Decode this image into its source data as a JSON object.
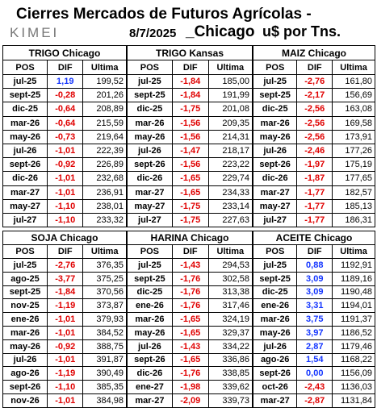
{
  "header": {
    "title": "Cierres Mercados de Futuros Agrícolas -",
    "logo": "KIMEI",
    "date": "8/7/2025",
    "market": "_Chicago",
    "unit": "u$ por Tns."
  },
  "tables": [
    {
      "name": "TRIGO  Chicago",
      "columns": [
        "POS",
        "DIF",
        "Ultima"
      ],
      "rows": [
        [
          "jul-25",
          "1,19",
          "199,52"
        ],
        [
          "sept-25",
          "-0,28",
          "201,26"
        ],
        [
          "dic-25",
          "-0,64",
          "208,89"
        ],
        [
          "mar-26",
          "-0,64",
          "215,59"
        ],
        [
          "may-26",
          "-0,73",
          "219,64"
        ],
        [
          "jul-26",
          "-1,01",
          "222,39"
        ],
        [
          "sept-26",
          "-0,92",
          "226,89"
        ],
        [
          "dic-26",
          "-1,01",
          "232,68"
        ],
        [
          "mar-27",
          "-1,01",
          "236,91"
        ],
        [
          "may-27",
          "-1,10",
          "238,01"
        ],
        [
          "jul-27",
          "-1,10",
          "233,32"
        ]
      ]
    },
    {
      "name": "TRIGO  Kansas",
      "columns": [
        "POS",
        "DIF",
        "Ultima"
      ],
      "rows": [
        [
          "jul-25",
          "-1,84",
          "185,00"
        ],
        [
          "sept-25",
          "-1,84",
          "191,99"
        ],
        [
          "dic-25",
          "-1,75",
          "201,08"
        ],
        [
          "mar-26",
          "-1,56",
          "209,35"
        ],
        [
          "may-26",
          "-1,56",
          "214,31"
        ],
        [
          "jul-26",
          "-1,47",
          "218,17"
        ],
        [
          "sept-26",
          "-1,56",
          "223,22"
        ],
        [
          "dic-26",
          "-1,65",
          "229,74"
        ],
        [
          "mar-27",
          "-1,65",
          "234,33"
        ],
        [
          "may-27",
          "-1,75",
          "233,14"
        ],
        [
          "jul-27",
          "-1,75",
          "227,63"
        ]
      ]
    },
    {
      "name": "MAIZ Chicago",
      "columns": [
        "POS",
        "DIF",
        "Ultima"
      ],
      "rows": [
        [
          "jul-25",
          "-2,76",
          "161,80"
        ],
        [
          "sept-25",
          "-2,17",
          "156,69"
        ],
        [
          "dic-25",
          "-2,56",
          "163,08"
        ],
        [
          "mar-26",
          "-2,56",
          "169,58"
        ],
        [
          "may-26",
          "-2,56",
          "173,91"
        ],
        [
          "jul-26",
          "-2,46",
          "177,26"
        ],
        [
          "sept-26",
          "-1,97",
          "175,19"
        ],
        [
          "dic-26",
          "-1,87",
          "177,65"
        ],
        [
          "mar-27",
          "-1,77",
          "182,57"
        ],
        [
          "may-27",
          "-1,77",
          "185,13"
        ],
        [
          "jul-27",
          "-1,77",
          "186,31"
        ]
      ]
    },
    {
      "name": "SOJA Chicago",
      "columns": [
        "POS",
        "DIF",
        "Ultima"
      ],
      "rows": [
        [
          "jul-25",
          "-2,76",
          "376,35"
        ],
        [
          "ago-25",
          "-3,77",
          "375,25"
        ],
        [
          "sept-25",
          "-1,84",
          "370,56"
        ],
        [
          "nov-25",
          "-1,19",
          "373,87"
        ],
        [
          "ene-26",
          "-1,01",
          "379,93"
        ],
        [
          "mar-26",
          "-1,01",
          "384,52"
        ],
        [
          "may-26",
          "-0,92",
          "388,75"
        ],
        [
          "jul-26",
          "-1,01",
          "391,87"
        ],
        [
          "ago-26",
          "-1,19",
          "390,49"
        ],
        [
          "sept-26",
          "-1,10",
          "385,35"
        ],
        [
          "nov-26",
          "-1,01",
          "384,98"
        ]
      ]
    },
    {
      "name": "HARINA Chicago",
      "columns": [
        "POS",
        "DIF",
        "Ultima"
      ],
      "rows": [
        [
          "jul-25",
          "-1,43",
          "294,53"
        ],
        [
          "sept-25",
          "-1,76",
          "302,58"
        ],
        [
          "dic-25",
          "-1,76",
          "313,38"
        ],
        [
          "ene-26",
          "-1,76",
          "317,46"
        ],
        [
          "mar-26",
          "-1,65",
          "324,19"
        ],
        [
          "may-26",
          "-1,65",
          "329,37"
        ],
        [
          "jul-26",
          "-1,43",
          "334,22"
        ],
        [
          "sept-26",
          "-1,65",
          "336,86"
        ],
        [
          "dic-26",
          "-1,76",
          "338,85"
        ],
        [
          "ene-27",
          "-1,98",
          "339,62"
        ],
        [
          "mar-27",
          "-2,09",
          "339,73"
        ]
      ]
    },
    {
      "name": "ACEITE Chicago",
      "columns": [
        "POS",
        "DIF",
        "Ultima"
      ],
      "rows": [
        [
          "jul-25",
          "0,88",
          "1192,91"
        ],
        [
          "sept-25",
          "3,09",
          "1189,16"
        ],
        [
          "dic-25",
          "3,09",
          "1190,48"
        ],
        [
          "ene-26",
          "3,31",
          "1194,01"
        ],
        [
          "mar-26",
          "3,75",
          "1191,37"
        ],
        [
          "may-26",
          "3,97",
          "1186,52"
        ],
        [
          "jul-26",
          "2,87",
          "1179,46"
        ],
        [
          "ago-26",
          "1,54",
          "1168,22"
        ],
        [
          "sept-26",
          "0,00",
          "1156,09"
        ],
        [
          "oct-26",
          "-2,43",
          "1136,03"
        ],
        [
          "mar-27",
          "-2,87",
          "1131,84"
        ]
      ]
    }
  ]
}
